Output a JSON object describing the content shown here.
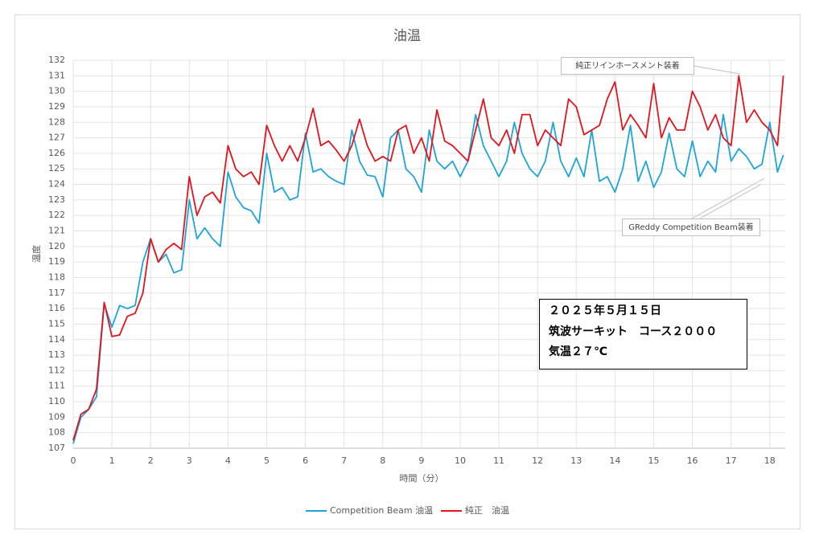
{
  "chart_data": {
    "type": "line",
    "title": "油温",
    "xlabel": "時間（分）",
    "ylabel": "温度",
    "x": [
      0,
      0.2,
      0.4,
      0.6,
      0.8,
      1,
      1.2,
      1.4,
      1.6,
      1.8,
      2,
      2.2,
      2.4,
      2.6,
      2.8,
      3,
      3.2,
      3.4,
      3.6,
      3.8,
      4,
      4.2,
      4.4,
      4.6,
      4.8,
      5,
      5.2,
      5.4,
      5.6,
      5.8,
      6,
      6.2,
      6.4,
      6.6,
      6.8,
      7,
      7.2,
      7.4,
      7.6,
      7.8,
      8,
      8.2,
      8.4,
      8.6,
      8.8,
      9,
      9.2,
      9.4,
      9.6,
      9.8,
      10,
      10.2,
      10.4,
      10.6,
      10.8,
      11,
      11.2,
      11.4,
      11.6,
      11.8,
      12,
      12.2,
      12.4,
      12.6,
      12.8,
      13,
      13.2,
      13.4,
      13.6,
      13.8,
      14,
      14.2,
      14.4,
      14.6,
      14.8,
      15,
      15.2,
      15.4,
      15.6,
      15.8,
      16,
      16.2,
      16.4,
      16.6,
      16.8,
      17,
      17.2,
      17.4,
      17.6,
      17.8,
      18,
      18.2,
      18.35
    ],
    "series": [
      {
        "name": "Competition Beam 油温",
        "color": "#1ea4dd",
        "values": [
          107.3,
          109,
          109.5,
          110.3,
          116.3,
          114.8,
          116.2,
          116,
          116.2,
          119,
          120.5,
          119,
          119.5,
          118.3,
          118.5,
          123,
          120.5,
          121.2,
          120.5,
          120,
          124.8,
          123.2,
          122.5,
          122.3,
          121.5,
          126,
          123.5,
          123.8,
          123,
          123.2,
          127.3,
          124.8,
          125,
          124.5,
          124.2,
          124,
          127.5,
          125.5,
          124.6,
          124.5,
          123.2,
          127,
          127.5,
          125,
          124.5,
          123.5,
          127.5,
          125.5,
          125,
          125.5,
          124.5,
          125.5,
          128.5,
          126.5,
          125.5,
          124.5,
          125.5,
          128,
          126,
          125,
          124.5,
          125.5,
          128,
          125.5,
          124.5,
          125.7,
          124.5,
          127.5,
          124.2,
          124.5,
          123.5,
          125,
          127.8,
          124.2,
          125.5,
          123.8,
          124.8,
          127.3,
          125,
          124.5,
          126.8,
          124.5,
          125.5,
          124.8,
          128.5,
          125.5,
          126.3,
          125.8,
          125,
          125.3,
          128,
          124.8,
          125.9
        ]
      },
      {
        "name": "純正　油温",
        "color": "#e3141c",
        "values": [
          107.5,
          109.2,
          109.5,
          110.8,
          116.4,
          114.2,
          114.3,
          115.5,
          115.7,
          117,
          120.5,
          119,
          119.8,
          120.2,
          119.8,
          124.5,
          122,
          123.2,
          123.5,
          122.8,
          126.5,
          125,
          124.5,
          124.8,
          124,
          127.8,
          126.5,
          125.5,
          126.5,
          125.5,
          127,
          128.9,
          126.5,
          126.8,
          126.2,
          125.5,
          126.5,
          128.2,
          126.5,
          125.5,
          125.8,
          125.5,
          127.5,
          127.8,
          126,
          127,
          125.5,
          128.8,
          126.8,
          126.5,
          126,
          125.5,
          127.5,
          129.5,
          127,
          126.5,
          127.5,
          126,
          128.5,
          128.5,
          126.5,
          127.5,
          127,
          126.5,
          129.5,
          129,
          127.2,
          127.5,
          127.8,
          129.5,
          130.6,
          127.5,
          128.5,
          127.8,
          127,
          130.5,
          127,
          128.3,
          127.5,
          127.5,
          130,
          129,
          127.5,
          128.5,
          127,
          126.5,
          131,
          128,
          128.8,
          128,
          127.5,
          126.5,
          131
        ]
      }
    ],
    "xlim": [
      0,
      18.4
    ],
    "ylim": [
      107,
      132
    ],
    "xticks": [
      0,
      1,
      2,
      3,
      4,
      5,
      6,
      7,
      8,
      9,
      10,
      11,
      12,
      13,
      14,
      15,
      16,
      17,
      18
    ],
    "yticks": [
      107,
      108,
      109,
      110,
      111,
      112,
      113,
      114,
      115,
      116,
      117,
      118,
      119,
      120,
      121,
      122,
      123,
      124,
      125,
      126,
      127,
      128,
      129,
      130,
      131,
      132
    ],
    "grid": true,
    "legend": "bottom",
    "annotations": [
      "純正リインホースメント装着",
      "GReddy Competition Beam装着"
    ],
    "info_box": [
      "２０２５年５月１５日",
      "筑波サーキット　コース２０００",
      "気温２７℃"
    ]
  }
}
